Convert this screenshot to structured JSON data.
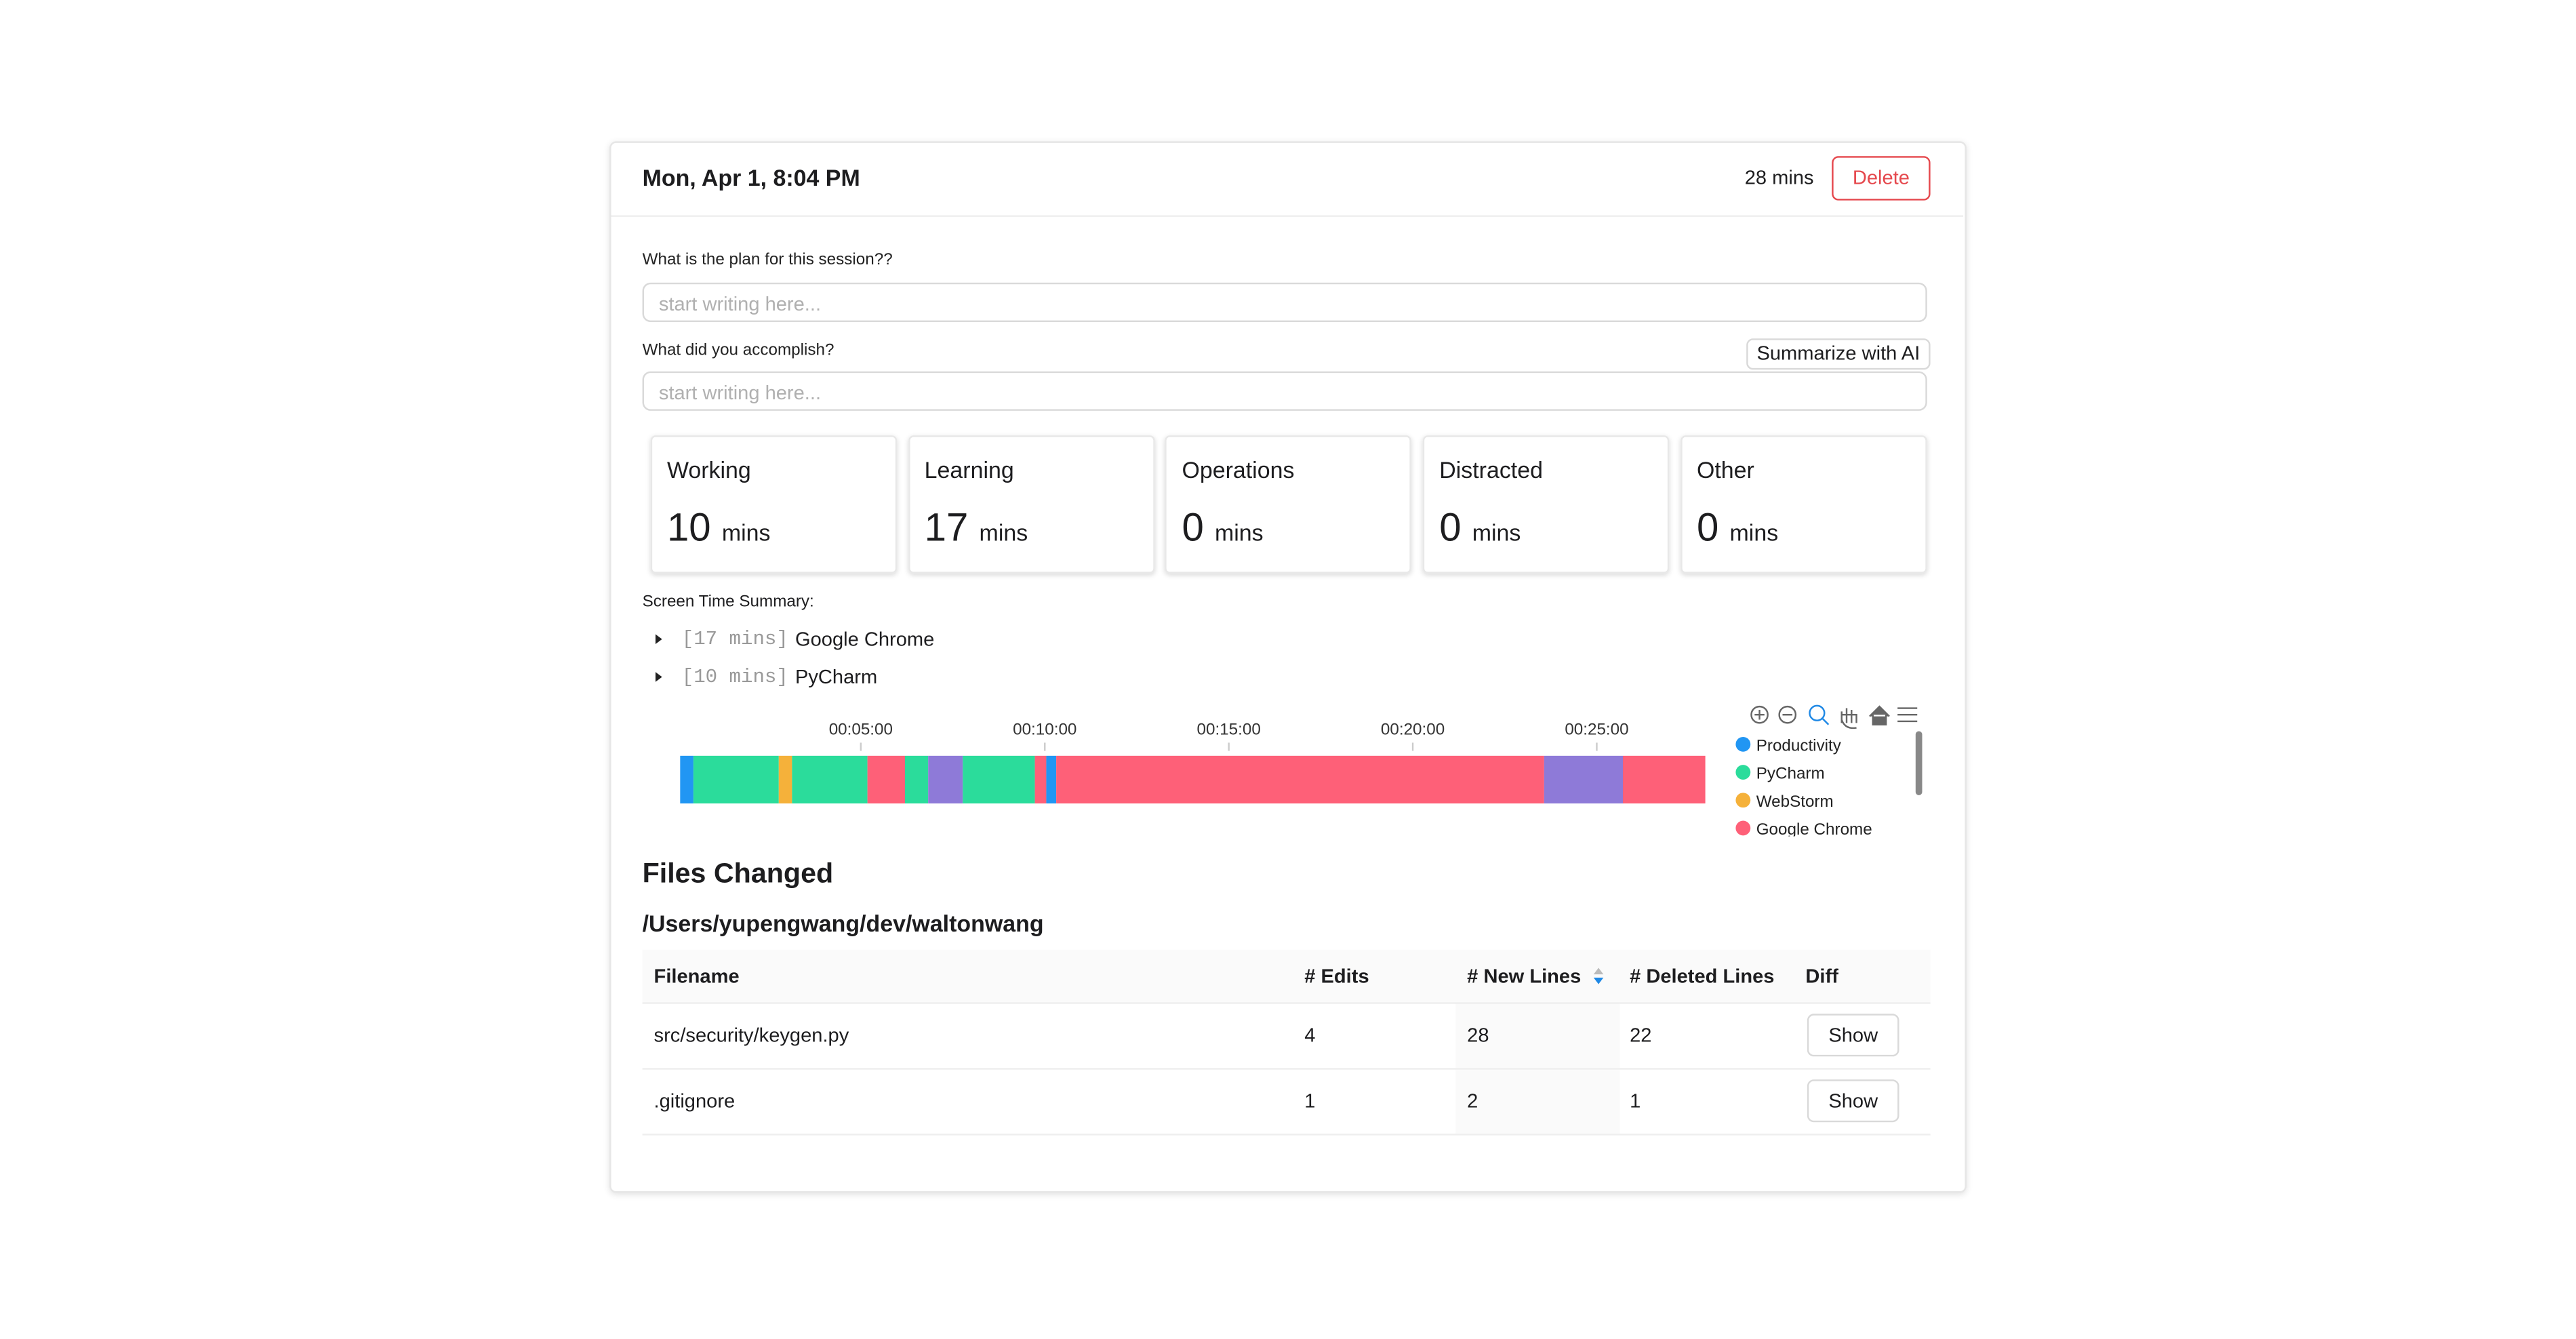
{
  "header": {
    "date": "Mon, Apr 1, 8:04 PM",
    "duration": "28 mins",
    "delete": "Delete"
  },
  "plan": {
    "label": "What is the plan for this session??",
    "placeholder": "start writing here..."
  },
  "accomplish": {
    "label": "What did you accomplish?",
    "placeholder": "start writing here...",
    "button": "Summarize with AI"
  },
  "cards": [
    {
      "label": "Working",
      "value": "10",
      "unit": "mins"
    },
    {
      "label": "Learning",
      "value": "17",
      "unit": "mins"
    },
    {
      "label": "Operations",
      "value": "0",
      "unit": "mins"
    },
    {
      "label": "Distracted",
      "value": "0",
      "unit": "mins"
    },
    {
      "label": "Other",
      "value": "0",
      "unit": "mins"
    }
  ],
  "screen_time": {
    "title": "Screen Time Summary:",
    "items": [
      {
        "duration": "[17 mins]",
        "app": "Google Chrome"
      },
      {
        "duration": "[10 mins]",
        "app": "PyCharm"
      }
    ]
  },
  "chart_data": {
    "type": "timeline",
    "xlim": [
      0.09,
      27.95
    ],
    "xticks": [
      {
        "value": 5,
        "label": "00:05:00"
      },
      {
        "value": 10,
        "label": "00:10:00"
      },
      {
        "value": 15,
        "label": "00:15:00"
      },
      {
        "value": 20,
        "label": "00:20:00"
      },
      {
        "value": 25,
        "label": "00:25:00"
      }
    ],
    "series": [
      {
        "name": "Productivity",
        "color": "#2196f3"
      },
      {
        "name": "PyCharm",
        "color": "#2bdc9b"
      },
      {
        "name": "WebStorm",
        "color": "#f5b13a"
      },
      {
        "name": "Google Chrome",
        "color": "#fe6078"
      },
      {
        "color": "#8e7ad8"
      }
    ],
    "segments": [
      {
        "start": 0.09,
        "end": 0.45,
        "series": 0
      },
      {
        "start": 0.45,
        "end": 2.77,
        "series": 1
      },
      {
        "start": 2.77,
        "end": 3.13,
        "series": 2
      },
      {
        "start": 3.13,
        "end": 5.18,
        "series": 1
      },
      {
        "start": 5.18,
        "end": 6.2,
        "series": 3
      },
      {
        "start": 6.2,
        "end": 6.83,
        "series": 1
      },
      {
        "start": 6.83,
        "end": 7.77,
        "series": 4
      },
      {
        "start": 7.77,
        "end": 9.73,
        "series": 1
      },
      {
        "start": 9.73,
        "end": 10.04,
        "series": 3
      },
      {
        "start": 10.04,
        "end": 10.31,
        "series": 0
      },
      {
        "start": 10.31,
        "end": 23.57,
        "series": 3
      },
      {
        "start": 23.57,
        "end": 25.71,
        "series": 4
      },
      {
        "start": 25.71,
        "end": 27.95,
        "series": 3
      }
    ]
  },
  "files": {
    "title": "Files Changed",
    "path": "/Users/yupengwang/dev/waltonwang",
    "table": {
      "columns": [
        "Filename",
        "# Edits",
        "# New Lines",
        "# Deleted Lines",
        "Diff"
      ],
      "rows": [
        [
          "src/security/keygen.py",
          "4",
          "28",
          "22",
          "Show"
        ],
        [
          ".gitignore",
          "1",
          "2",
          "1",
          "Show"
        ]
      ]
    }
  }
}
